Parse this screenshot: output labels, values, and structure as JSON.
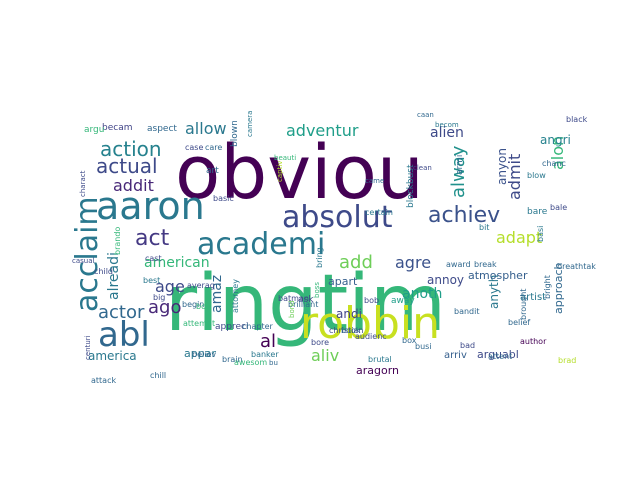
{
  "colors": {
    "background": "#ffffff",
    "purple": "#440154",
    "blue": "#3b528b",
    "teal": "#21908c",
    "green": "#5dc863",
    "yellow": "#fde725",
    "darkteal": "#2c728e",
    "lime": "#b5de2b"
  },
  "words": [
    {
      "text": "obviou",
      "color": "#440154"
    },
    {
      "text": "ringtim",
      "color": "#35b779"
    },
    {
      "text": "robbin",
      "color": "#c8e020"
    },
    {
      "text": "absolut",
      "color": "#3e4a89"
    },
    {
      "text": "academi",
      "color": "#2a788e"
    },
    {
      "text": "aaron",
      "color": "#2a788e"
    },
    {
      "text": "abl",
      "color": "#31688e"
    },
    {
      "text": "achiev",
      "color": "#3b528b"
    },
    {
      "text": "acclaim",
      "color": "#2a788e"
    },
    {
      "text": "action",
      "color": "#26828e"
    },
    {
      "text": "actual",
      "color": "#3e4a89"
    },
    {
      "text": "act",
      "color": "#443983"
    },
    {
      "text": "actor",
      "color": "#31688e"
    },
    {
      "text": "adventur",
      "color": "#1f9e89"
    },
    {
      "text": "alien",
      "color": "#3e4a89"
    },
    {
      "text": "allow",
      "color": "#2a788e"
    },
    {
      "text": "addit",
      "color": "#482878"
    },
    {
      "text": "alway",
      "color": "#21918c"
    },
    {
      "text": "admit",
      "color": "#3e4a89"
    },
    {
      "text": "alon",
      "color": "#35b779"
    },
    {
      "text": "adapt",
      "color": "#b5de2b"
    },
    {
      "text": "add",
      "color": "#6ece58"
    },
    {
      "text": "agre",
      "color": "#3b528b"
    },
    {
      "text": "ago",
      "color": "#482878"
    },
    {
      "text": "age",
      "color": "#3e4a89"
    },
    {
      "text": "aliv",
      "color": "#6ece58"
    },
    {
      "text": "al",
      "color": "#440154"
    },
    {
      "text": "america",
      "color": "#2a788e"
    },
    {
      "text": "american",
      "color": "#35b779"
    },
    {
      "text": "alreadi",
      "color": "#2a788e"
    },
    {
      "text": "amaz",
      "color": "#31688e"
    },
    {
      "text": "anoth",
      "color": "#1f9e89"
    },
    {
      "text": "andi",
      "color": "#414487"
    },
    {
      "text": "annoy",
      "color": "#3e4a89"
    },
    {
      "text": "anyth",
      "color": "#2a788e"
    },
    {
      "text": "anyon",
      "color": "#3b528b"
    },
    {
      "text": "angri",
      "color": "#26828e"
    },
    {
      "text": "apart",
      "color": "#355f8d"
    },
    {
      "text": "appar",
      "color": "#2a788e"
    },
    {
      "text": "approach",
      "color": "#31688e"
    },
    {
      "text": "aragorn",
      "color": "#440154"
    },
    {
      "text": "arguabl",
      "color": "#3e4a89"
    },
    {
      "text": "arriv",
      "color": "#355f8d"
    },
    {
      "text": "artist",
      "color": "#2a788e"
    },
    {
      "text": "atmospher",
      "color": "#355f8d"
    },
    {
      "text": "appreci",
      "color": "#3e4a89"
    },
    {
      "text": "aspect",
      "color": "#31688e"
    },
    {
      "text": "becam",
      "color": "#414487"
    },
    {
      "text": "argu",
      "color": "#35b779"
    },
    {
      "text": "art",
      "color": "#31688e"
    },
    {
      "text": "ask",
      "color": "#3e4a89"
    },
    {
      "text": "away",
      "color": "#1f9e89"
    },
    {
      "text": "bob",
      "color": "#3e4a89"
    },
    {
      "text": "book",
      "color": "#2a788e"
    },
    {
      "text": "brain",
      "color": "#31688e"
    },
    {
      "text": "brutal",
      "color": "#2a788e"
    },
    {
      "text": "audienc",
      "color": "#3e4a89"
    },
    {
      "text": "author",
      "color": "#440154"
    },
    {
      "text": "attack",
      "color": "#31688e"
    },
    {
      "text": "attent",
      "color": "#31688e"
    },
    {
      "text": "averag",
      "color": "#3e4a89"
    },
    {
      "text": "basic",
      "color": "#3e4a89"
    },
    {
      "text": "big",
      "color": "#3e4a89"
    },
    {
      "text": "begin",
      "color": "#31688e"
    },
    {
      "text": "best",
      "color": "#2a788e"
    },
    {
      "text": "belief",
      "color": "#31688e"
    },
    {
      "text": "black",
      "color": "#3e4a89"
    },
    {
      "text": "bit",
      "color": "#2a788e"
    },
    {
      "text": "blow",
      "color": "#2a788e"
    },
    {
      "text": "bare",
      "color": "#2a788e"
    },
    {
      "text": "box",
      "color": "#31688e"
    },
    {
      "text": "bore",
      "color": "#3e4a89"
    },
    {
      "text": "awesom",
      "color": "#35b779"
    },
    {
      "text": "banker",
      "color": "#2a788e"
    },
    {
      "text": "christian",
      "color": "#3e4a89"
    },
    {
      "text": "chapter",
      "color": "#31688e"
    },
    {
      "text": "bandit",
      "color": "#31688e"
    },
    {
      "text": "blockbust",
      "color": "#2a788e"
    },
    {
      "text": "blown",
      "color": "#31688e"
    },
    {
      "text": "bale",
      "color": "#3e4a89"
    },
    {
      "text": "case",
      "color": "#3e4a89"
    },
    {
      "text": "chanc",
      "color": "#31688e"
    },
    {
      "text": "certain",
      "color": "#2a788e"
    },
    {
      "text": "armi",
      "color": "#31688e"
    },
    {
      "text": "bring",
      "color": "#2a788e"
    },
    {
      "text": "breathtak",
      "color": "#31688e"
    },
    {
      "text": "award",
      "color": "#31688e"
    },
    {
      "text": "break",
      "color": "#31688e"
    },
    {
      "text": "batman",
      "color": "#3e4a89"
    },
    {
      "text": "busi",
      "color": "#31688e"
    },
    {
      "text": "believ",
      "color": "#31688e"
    },
    {
      "text": "chill",
      "color": "#31688e"
    },
    {
      "text": "child",
      "color": "#3e4a89"
    },
    {
      "text": "cast",
      "color": "#3e4a89"
    },
    {
      "text": "care",
      "color": "#31688e"
    },
    {
      "text": "bad",
      "color": "#3e4a89"
    },
    {
      "text": "brought",
      "color": "#31688e"
    },
    {
      "text": "brilliant",
      "color": "#31688e"
    },
    {
      "text": "brad",
      "color": "#b5de2b"
    },
    {
      "text": "bright",
      "color": "#31688e"
    },
    {
      "text": "attempt",
      "color": "#35b779"
    },
    {
      "text": "attorney",
      "color": "#2a788e"
    },
    {
      "text": "boy",
      "color": "#35b779"
    },
    {
      "text": "basi",
      "color": "#2a788e"
    },
    {
      "text": "brando",
      "color": "#35b779"
    },
    {
      "text": "becom",
      "color": "#2a788e"
    },
    {
      "text": "caan",
      "color": "#31688e"
    },
    {
      "text": "beauti",
      "color": "#35b779"
    },
    {
      "text": "bond",
      "color": "#6ece58"
    },
    {
      "text": "bu",
      "color": "#31688e"
    },
    {
      "text": "centuri",
      "color": "#3e4a89"
    },
    {
      "text": "captiv",
      "color": "#b5de2b"
    },
    {
      "text": "charact",
      "color": "#3e4a89"
    },
    {
      "text": "boss",
      "color": "#35b779"
    },
    {
      "text": "came",
      "color": "#31688e"
    },
    {
      "text": "clean",
      "color": "#3e4a89"
    },
    {
      "text": "casual",
      "color": "#3e4a89"
    },
    {
      "text": "camera",
      "color": "#2a788e"
    }
  ]
}
